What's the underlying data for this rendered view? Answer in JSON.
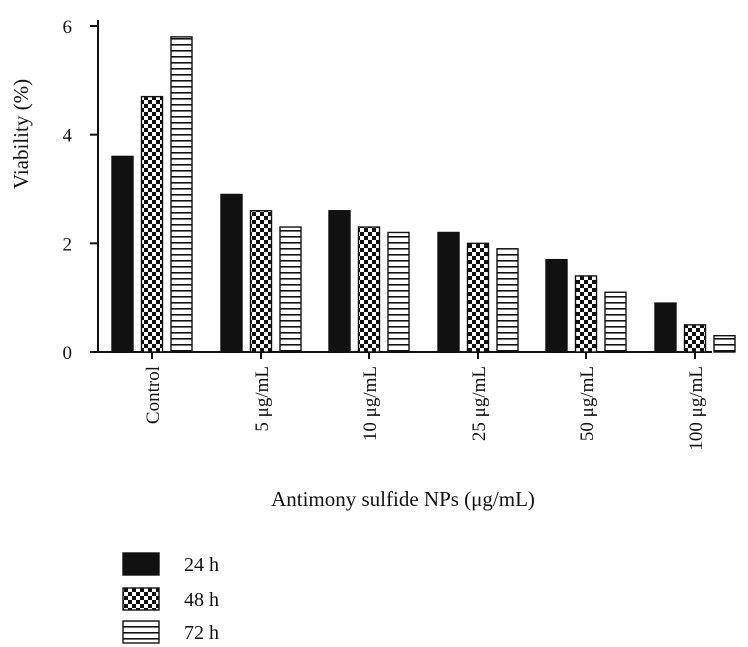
{
  "chart_data": {
    "type": "bar",
    "ylabel": "Viability (%)",
    "xlabel": "Antimony sulfide NPs (μg/mL)",
    "ylim": [
      0,
      6
    ],
    "yticks": [
      "0",
      "2",
      "4",
      "6"
    ],
    "categories": [
      "Control",
      "5 μg/mL",
      "10 μg/mL",
      "25 μg/mL",
      "50 μg/mL",
      "100 μg/mL"
    ],
    "series": [
      {
        "name": "24 h",
        "pattern": "solid",
        "values": [
          3.6,
          2.9,
          2.6,
          2.2,
          1.7,
          0.9
        ]
      },
      {
        "name": "48 h",
        "pattern": "checker",
        "values": [
          4.7,
          2.6,
          2.3,
          2.0,
          1.4,
          0.5
        ]
      },
      {
        "name": "72 h",
        "pattern": "hstripe",
        "values": [
          5.8,
          2.3,
          2.2,
          1.9,
          1.1,
          0.3
        ]
      }
    ],
    "legend_position": "bottom-left",
    "grid": false
  },
  "colors": {
    "ink": "#111111",
    "background": "#ffffff"
  }
}
